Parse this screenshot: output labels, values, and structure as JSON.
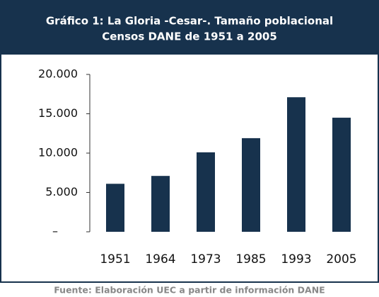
{
  "chart_data": {
    "type": "bar",
    "title": "Gráfico 1: La Gloria -Cesar-. Tamaño poblacional",
    "subtitle": "Censos DANE de 1951 a 2005",
    "source": "Fuente: Elaboración UEC a partir de información DANE",
    "categories": [
      "1951",
      "1964",
      "1973",
      "1985",
      "1993",
      "2005"
    ],
    "values": [
      6100,
      7100,
      10100,
      11900,
      17100,
      14500
    ],
    "color": "#17324d",
    "ylim": [
      0,
      20000
    ],
    "yticks": [
      {
        "value": 0,
        "label": "–"
      },
      {
        "value": 5000,
        "label": "5.000"
      },
      {
        "value": 10000,
        "label": "10.000"
      },
      {
        "value": 15000,
        "label": "15.000"
      },
      {
        "value": 20000,
        "label": "20.000"
      }
    ],
    "grid": false
  }
}
